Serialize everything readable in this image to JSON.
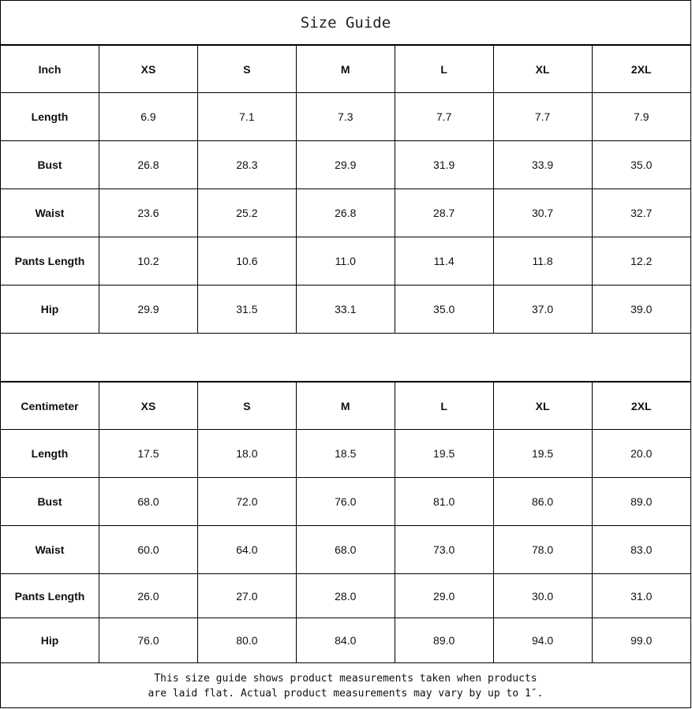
{
  "title": "Size Guide",
  "tables": [
    {
      "unit": "Inch",
      "sizes": [
        "XS",
        "S",
        "M",
        "L",
        "XL",
        "2XL"
      ],
      "rows": [
        {
          "label": "Length",
          "values": [
            "6.9",
            "7.1",
            "7.3",
            "7.7",
            "7.7",
            "7.9"
          ]
        },
        {
          "label": "Bust",
          "values": [
            "26.8",
            "28.3",
            "29.9",
            "31.9",
            "33.9",
            "35.0"
          ]
        },
        {
          "label": "Waist",
          "values": [
            "23.6",
            "25.2",
            "26.8",
            "28.7",
            "30.7",
            "32.7"
          ]
        },
        {
          "label": "Pants Length",
          "values": [
            "10.2",
            "10.6",
            "11.0",
            "11.4",
            "11.8",
            "12.2"
          ]
        },
        {
          "label": "Hip",
          "values": [
            "29.9",
            "31.5",
            "33.1",
            "35.0",
            "37.0",
            "39.0"
          ]
        }
      ]
    },
    {
      "unit": "Centimeter",
      "sizes": [
        "XS",
        "S",
        "M",
        "L",
        "XL",
        "2XL"
      ],
      "rows": [
        {
          "label": "Length",
          "values": [
            "17.5",
            "18.0",
            "18.5",
            "19.5",
            "19.5",
            "20.0"
          ]
        },
        {
          "label": "Bust",
          "values": [
            "68.0",
            "72.0",
            "76.0",
            "81.0",
            "86.0",
            "89.0"
          ]
        },
        {
          "label": "Waist",
          "values": [
            "60.0",
            "64.0",
            "68.0",
            "73.0",
            "78.0",
            "83.0"
          ]
        },
        {
          "label": "Pants Length",
          "values": [
            "26.0",
            "27.0",
            "28.0",
            "29.0",
            "30.0",
            "31.0"
          ]
        },
        {
          "label": "Hip",
          "values": [
            "76.0",
            "80.0",
            "84.0",
            "89.0",
            "94.0",
            "99.0"
          ]
        }
      ]
    }
  ],
  "footer": {
    "line1": "This size guide shows product measurements taken when products",
    "line2": "are laid flat. Actual product measurements may vary by up to 1″."
  }
}
